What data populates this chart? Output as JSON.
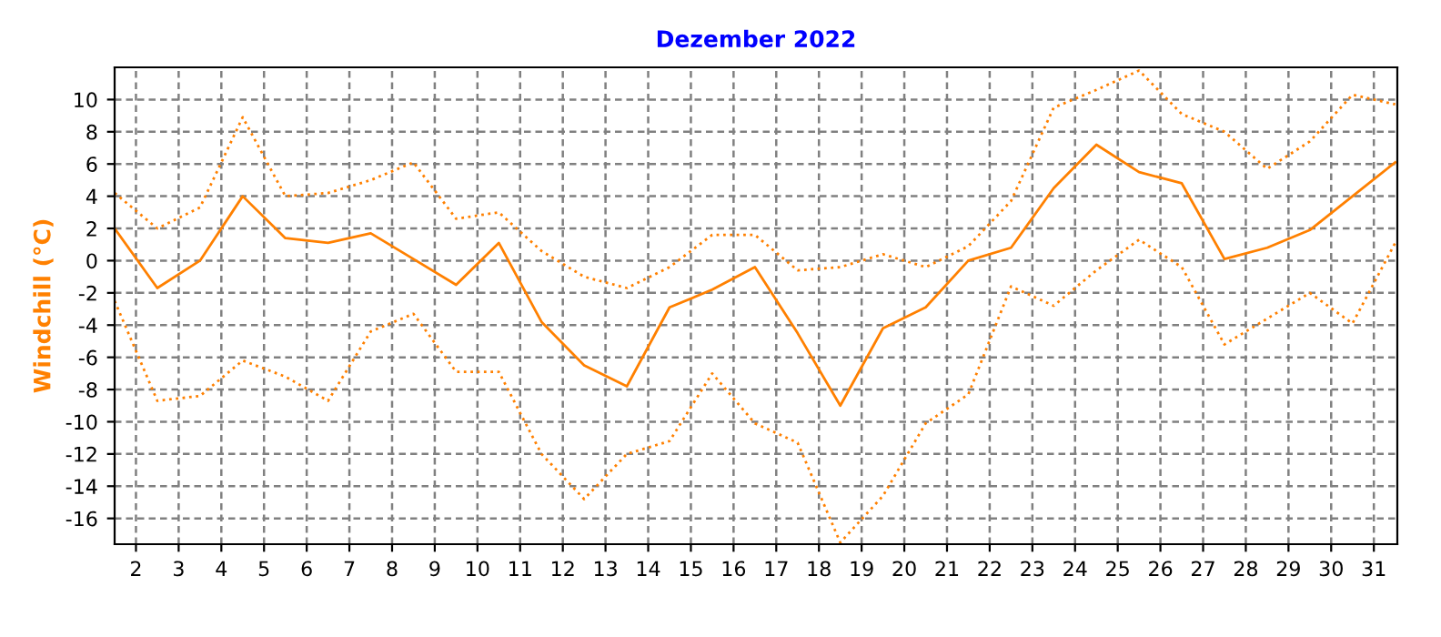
{
  "chart_data": {
    "type": "line",
    "title": "Dezember 2022",
    "ylabel": "Windchill (°C)",
    "x": [
      1.5,
      2.5,
      3.5,
      4.5,
      5.5,
      6.5,
      7.5,
      8.5,
      9.5,
      10.5,
      11.5,
      12.5,
      13.5,
      14.5,
      15.5,
      16.5,
      17.5,
      18.5,
      19.5,
      20.5,
      21.5,
      22.5,
      23.5,
      24.5,
      25.5,
      26.5,
      27.5,
      28.5,
      29.5,
      30.5,
      31.5
    ],
    "series": [
      {
        "color": "#ff8000",
        "line_style": "dotted",
        "values": [
          4.2,
          2.0,
          3.3,
          8.9,
          4.0,
          4.2,
          5.0,
          6.1,
          2.6,
          3.0,
          0.6,
          -1.0,
          -1.7,
          -0.4,
          1.6,
          1.6,
          -0.6,
          -0.4,
          0.4,
          -0.4,
          0.9,
          3.7,
          9.5,
          10.6,
          11.8,
          9.1,
          8.0,
          5.7,
          7.4,
          10.3,
          9.7
        ]
      },
      {
        "color": "#ff8000",
        "line_style": "solid",
        "values": [
          2.0,
          -1.7,
          0.0,
          4.0,
          1.4,
          1.1,
          1.7,
          0.1,
          -1.5,
          1.1,
          -3.8,
          -6.5,
          -7.8,
          -2.9,
          -1.8,
          -0.4,
          -4.5,
          -9.0,
          -4.2,
          -2.9,
          0.0,
          0.8,
          4.5,
          7.2,
          5.5,
          4.8,
          0.1,
          0.8,
          1.9,
          4.0,
          6.1
        ]
      },
      {
        "color": "#ff8000",
        "line_style": "dotted",
        "values": [
          -2.5,
          -8.7,
          -8.4,
          -6.2,
          -7.2,
          -8.7,
          -4.4,
          -3.3,
          -6.9,
          -6.9,
          -12.0,
          -14.8,
          -12.0,
          -11.2,
          -7.0,
          -10.1,
          -11.3,
          -17.5,
          -14.6,
          -10.1,
          -8.3,
          -1.6,
          -2.8,
          -0.6,
          1.3,
          -0.4,
          -5.2,
          -3.6,
          -2.0,
          -3.9,
          1.1
        ]
      }
    ],
    "xlim": [
      1.5,
      31.55
    ],
    "xticks": [
      2,
      3,
      4,
      5,
      6,
      7,
      8,
      9,
      10,
      11,
      12,
      13,
      14,
      15,
      16,
      17,
      18,
      19,
      20,
      21,
      22,
      23,
      24,
      25,
      26,
      27,
      28,
      29,
      30,
      31
    ],
    "ylim": [
      -17.6,
      12
    ],
    "yticks": [
      -16,
      -14,
      -12,
      -10,
      -8,
      -6,
      -4,
      -2,
      0,
      2,
      4,
      6,
      8,
      10
    ],
    "grid": true,
    "marker": "none"
  }
}
